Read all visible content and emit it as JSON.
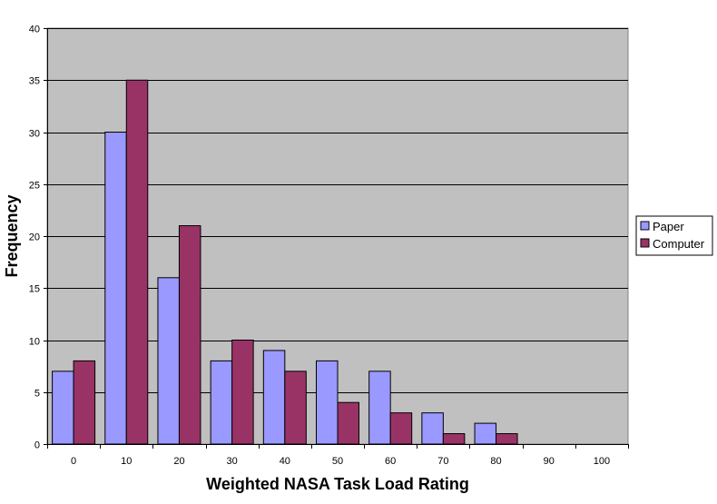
{
  "chart_data": {
    "type": "bar",
    "title": "",
    "xlabel": "Weighted NASA Task Load Rating",
    "ylabel": "Frequency",
    "categories": [
      "0",
      "10",
      "20",
      "30",
      "40",
      "50",
      "60",
      "70",
      "80",
      "90",
      "100"
    ],
    "series": [
      {
        "name": "Paper",
        "values": [
          7,
          30,
          16,
          8,
          9,
          8,
          7,
          3,
          2,
          0,
          0
        ],
        "color": "#9999FF"
      },
      {
        "name": "Computer",
        "values": [
          8,
          35,
          21,
          10,
          7,
          4,
          3,
          1,
          1,
          0,
          0
        ],
        "color": "#993366"
      }
    ],
    "ylim": [
      0,
      40
    ],
    "yticks": [
      0,
      5,
      10,
      15,
      20,
      25,
      30,
      35,
      40
    ],
    "grid": true,
    "plot_background": "#C0C0C0",
    "legend_position": "right"
  }
}
